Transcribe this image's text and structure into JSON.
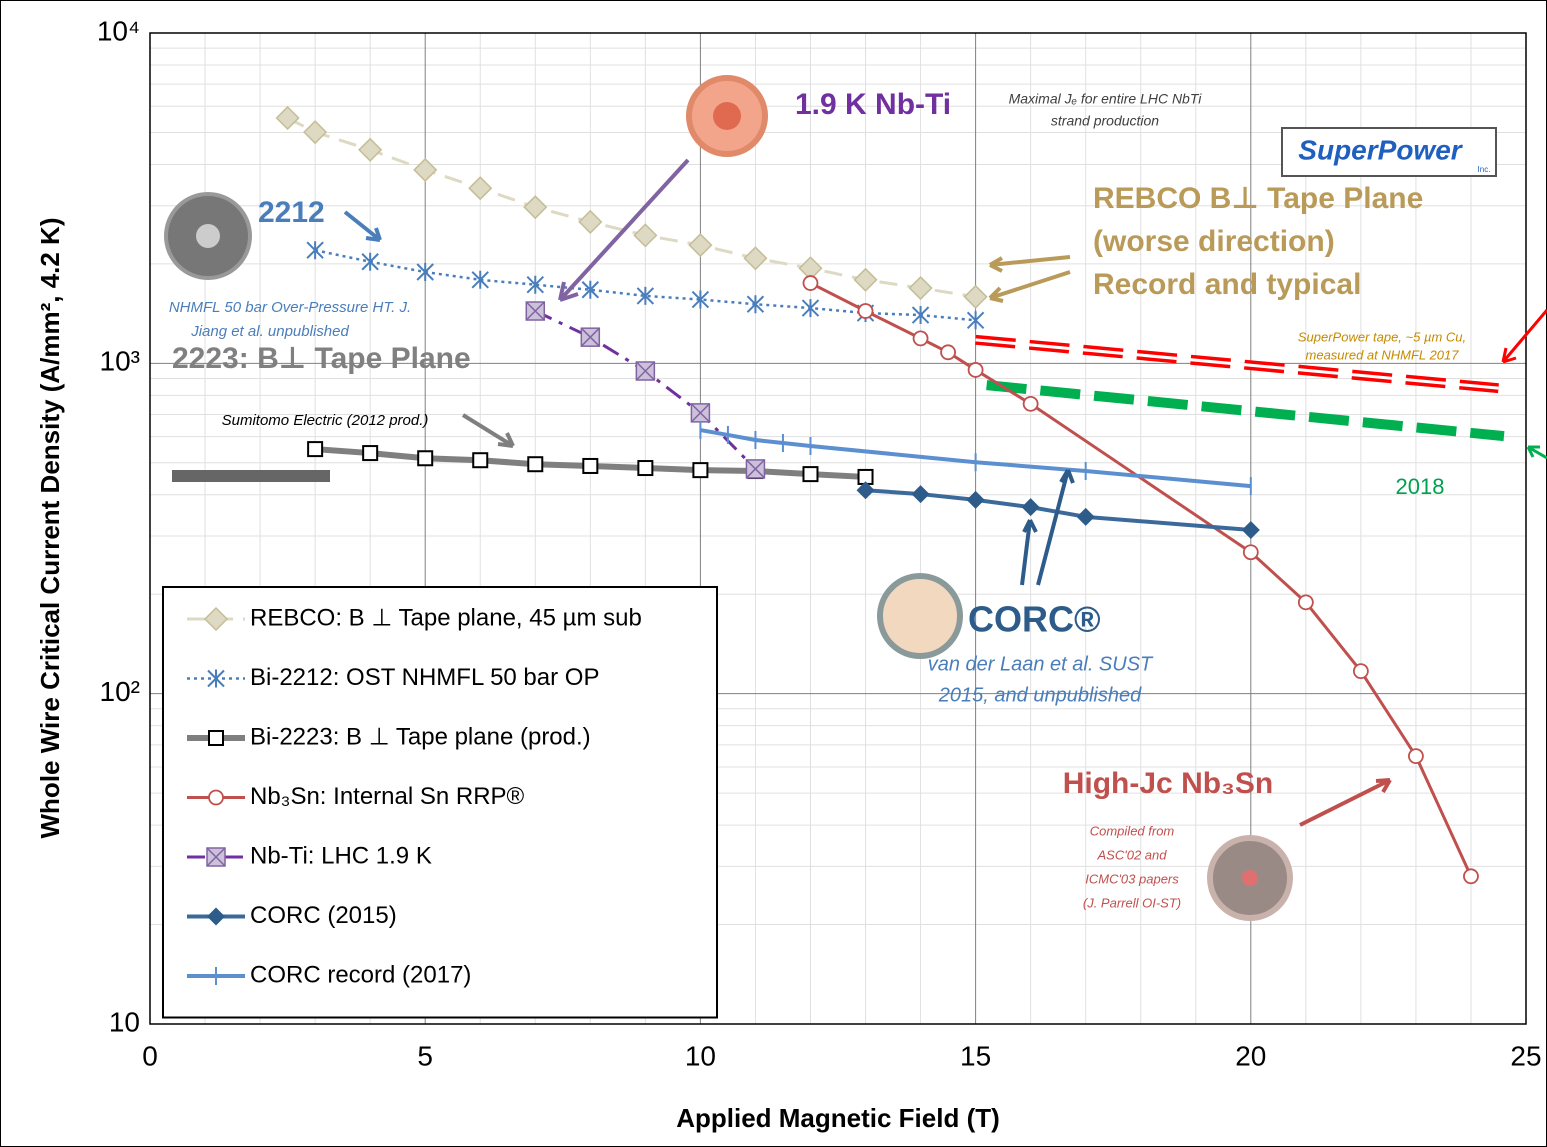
{
  "chart_data": {
    "type": "line",
    "x_label": "Applied Magnetic Field (T)",
    "y_label": "Whole Wire Critical Current Density (A/mm², 4.2 K)",
    "xlim": [
      0,
      25
    ],
    "xticks": [
      0,
      5,
      10,
      15,
      20,
      25
    ],
    "ylim": [
      10,
      10000
    ],
    "yticks": [
      10,
      {
        "value": 100,
        "label": "10²"
      },
      {
        "value": 1000,
        "label": "10³"
      },
      {
        "value": 10000,
        "label": "10⁴"
      }
    ],
    "ylog": true,
    "grid": true,
    "legend": "lower left",
    "series": [
      {
        "name": "REBCO: B ⊥ Tape plane, 45 µm sub",
        "color": "#ddd9c3",
        "marker": "diamond",
        "marker_color": "#c4bd97",
        "dash": "dashed",
        "x": [
          2.5,
          3,
          4,
          5,
          6,
          7,
          8,
          9,
          10,
          11,
          12,
          13,
          14,
          15
        ],
        "values": [
          5530,
          5010,
          4430,
          3850,
          3390,
          2970,
          2680,
          2440,
          2280,
          2080,
          1940,
          1790,
          1690,
          1590
        ]
      },
      {
        "name": "Bi-2212: OST NHMFL 50 bar OP",
        "color": "#4a7ebb",
        "marker": "asterisk",
        "marker_color": "#4a7ebb",
        "dash": "dotted",
        "x": [
          3,
          4,
          5,
          6,
          7,
          8,
          9,
          10,
          11,
          12,
          13,
          14,
          15
        ],
        "values": [
          2200,
          2030,
          1890,
          1790,
          1730,
          1670,
          1600,
          1560,
          1510,
          1470,
          1420,
          1400,
          1350
        ]
      },
      {
        "name": "Bi-2223: B ⊥ Tape plane (prod.)",
        "color": "#7f7f7f",
        "marker": "square",
        "marker_color": "#000000",
        "dash": "solid",
        "x": [
          3,
          4,
          5,
          6,
          7,
          8,
          9,
          10,
          11,
          12,
          13
        ],
        "values": [
          550,
          535,
          516,
          509,
          495,
          489,
          482,
          475,
          472,
          462,
          453
        ]
      },
      {
        "name": "Nb₃Sn: Internal Sn RRP®",
        "color": "#c0504d",
        "marker": "circle",
        "marker_color": "#c0504d",
        "dash": "solid",
        "x": [
          12,
          13,
          14,
          14.5,
          15,
          16,
          20,
          21,
          22,
          23,
          24
        ],
        "values": [
          1750,
          1440,
          1190,
          1080,
          955,
          754,
          268,
          189,
          117,
          64.7,
          28
        ]
      },
      {
        "name": "Nb-Ti: LHC 1.9 K",
        "color": "#7030a0",
        "marker": "xsquare",
        "marker_color": "#8064a2",
        "dash": "dashdot",
        "x": [
          7,
          8,
          9,
          10,
          11
        ],
        "values": [
          1440,
          1200,
          948,
          708,
          479
        ]
      },
      {
        "name": "CORC (2015)",
        "color": "#3b6a9a",
        "marker": "filled-diamond",
        "marker_color": "#2e5c8a",
        "dash": "solid",
        "x": [
          13,
          14,
          15,
          16,
          17,
          20
        ],
        "values": [
          413,
          402,
          386,
          367,
          343,
          313
        ]
      },
      {
        "name": "CORC record (2017)",
        "color": "#5b8fd0",
        "marker": "plus",
        "marker_color": "#5b8fd0",
        "dash": "solid",
        "x": [
          10,
          10.5,
          11,
          11.5,
          12,
          15,
          17,
          20
        ],
        "values": [
          628,
          607,
          586,
          574,
          562,
          502,
          472,
          425
        ]
      }
    ],
    "lines": [
      {
        "color": "#ff0000",
        "x": [
          15,
          24.5
        ],
        "values": [
          1178,
          841
        ]
      },
      {
        "color": "#00b050",
        "x": [
          15.2,
          24.6
        ],
        "values": [
          859,
          602
        ]
      }
    ],
    "annotations": [
      "1.9 K Nb-Ti",
      "Maximal Jₑ for entire LHC NbTi",
      "strand production",
      "SuperPower",
      "Inc.",
      "REBCO B⊥ Tape Plane",
      "(worse direction)",
      "Record and typical",
      "2212",
      "NHMFL 50 bar Over-Pressure HT. J.",
      "Jiang et al. unpublished",
      "2223: B⊥ Tape Plane",
      "Sumitomo Electric (2012 prod.)",
      "SuperPower tape, ~5 µm Cu,",
      "measured at NHMFL 2017",
      "2018",
      "CORC®",
      "van der Laan et al. SUST",
      "2015, and unpublished",
      "High-Jc Nb₃Sn",
      "Compiled from",
      "ASC'02 and",
      "ICMC'03 papers",
      "(J. Parrell OI-ST)"
    ]
  }
}
